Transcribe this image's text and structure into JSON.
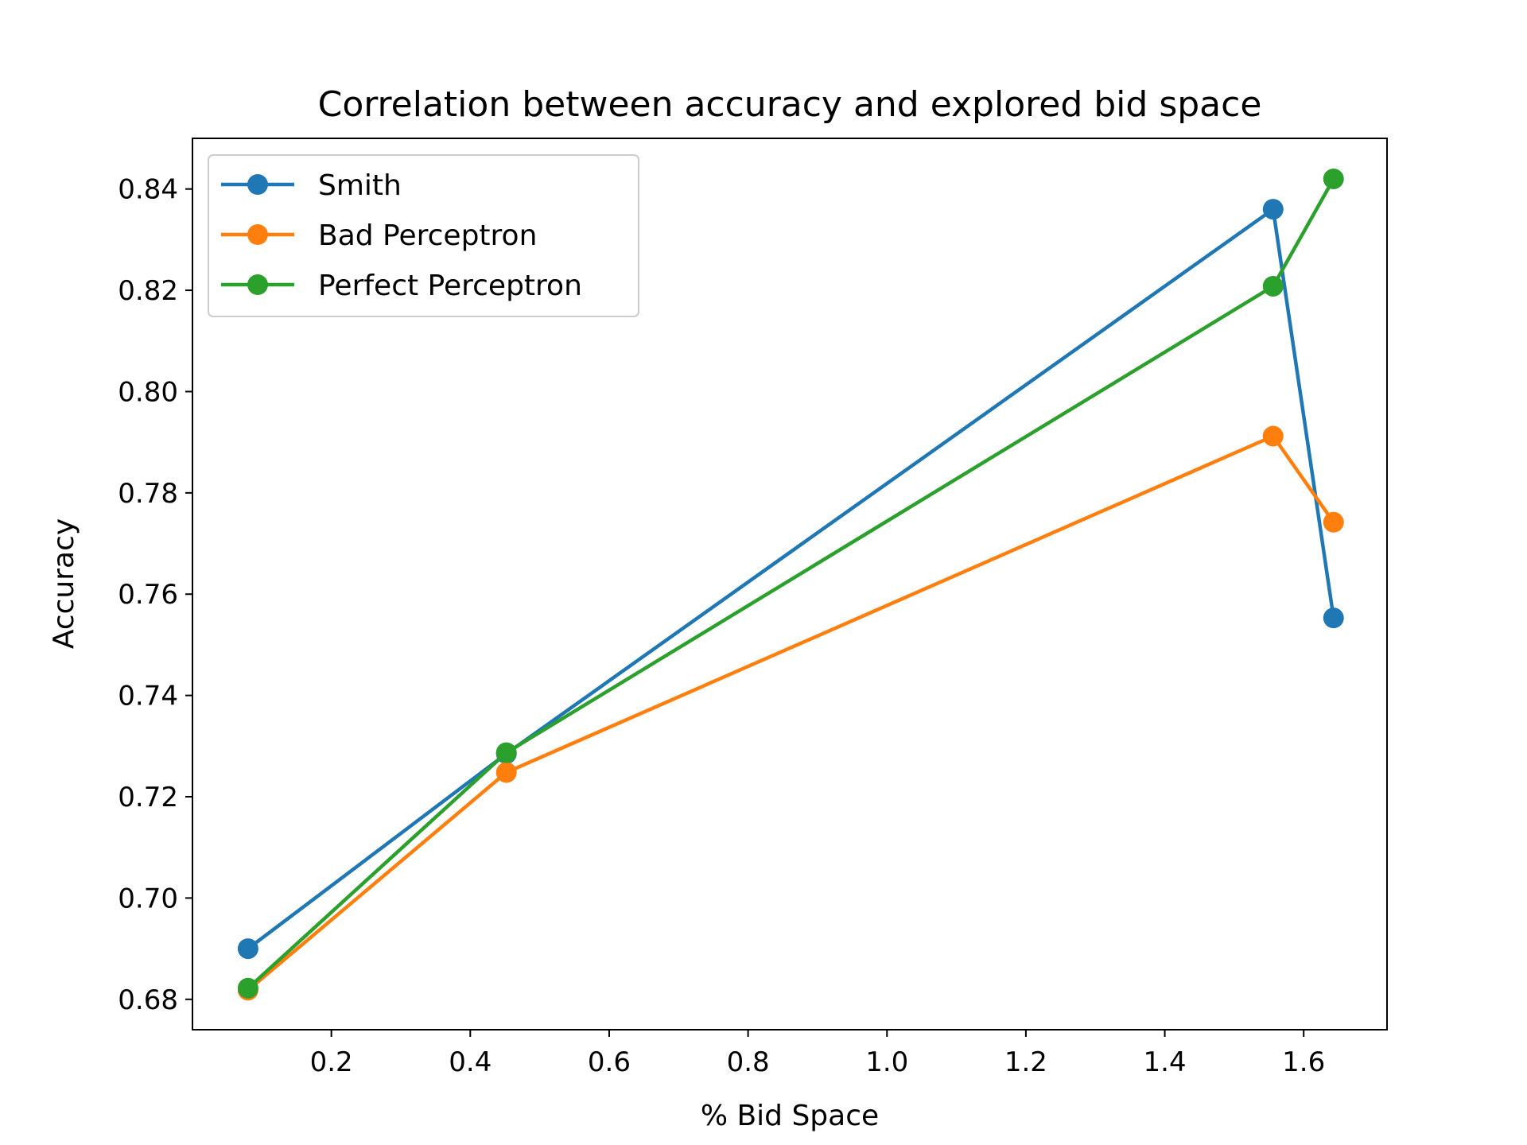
{
  "chart_data": {
    "type": "line",
    "title": "Correlation between accuracy and explored bid space",
    "xlabel": "% Bid Space",
    "ylabel": "Accuracy",
    "xlim": [
      0.0,
      1.72
    ],
    "ylim": [
      0.674,
      0.85
    ],
    "xticks": [
      0.2,
      0.4,
      0.6,
      0.8,
      1.0,
      1.2,
      1.4,
      1.6
    ],
    "xtick_labels": [
      "0.2",
      "0.4",
      "0.6",
      "0.8",
      "1.0",
      "1.2",
      "1.4",
      "1.6"
    ],
    "yticks": [
      0.68,
      0.7,
      0.72,
      0.74,
      0.76,
      0.78,
      0.8,
      0.82,
      0.84
    ],
    "ytick_labels": [
      "0.68",
      "0.70",
      "0.72",
      "0.74",
      "0.76",
      "0.78",
      "0.80",
      "0.82",
      "0.84"
    ],
    "grid": false,
    "legend_position": "top-left",
    "series": [
      {
        "name": "Smith",
        "color": "#1f77b4",
        "x": [
          0.08,
          0.452,
          1.556,
          1.643
        ],
        "y": [
          0.69,
          0.7285,
          0.836,
          0.7553
        ]
      },
      {
        "name": "Bad Perceptron",
        "color": "#ff7f0e",
        "x": [
          0.08,
          0.452,
          1.556,
          1.643
        ],
        "y": [
          0.6818,
          0.7248,
          0.7912,
          0.7742
        ]
      },
      {
        "name": "Perfect Perceptron",
        "color": "#2ca02c",
        "x": [
          0.08,
          0.452,
          1.556,
          1.643
        ],
        "y": [
          0.6822,
          0.7287,
          0.8208,
          0.842
        ]
      }
    ]
  }
}
